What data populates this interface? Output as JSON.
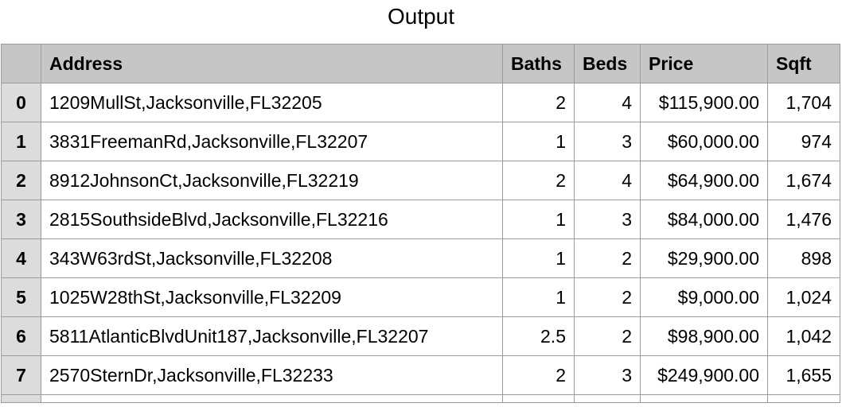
{
  "title": "Output",
  "columns": [
    "Address",
    "Baths",
    "Beds",
    "Price",
    "Sqft"
  ],
  "rows": [
    {
      "index": "0",
      "address": "1209MullSt,Jacksonville,FL32205",
      "baths": "2",
      "beds": "4",
      "price": "$115,900.00",
      "sqft": "1,704"
    },
    {
      "index": "1",
      "address": "3831FreemanRd,Jacksonville,FL32207",
      "baths": "1",
      "beds": "3",
      "price": "$60,000.00",
      "sqft": "974"
    },
    {
      "index": "2",
      "address": "8912JohnsonCt,Jacksonville,FL32219",
      "baths": "2",
      "beds": "4",
      "price": "$64,900.00",
      "sqft": "1,674"
    },
    {
      "index": "3",
      "address": "2815SouthsideBlvd,Jacksonville,FL32216",
      "baths": "1",
      "beds": "3",
      "price": "$84,000.00",
      "sqft": "1,476"
    },
    {
      "index": "4",
      "address": "343W63rdSt,Jacksonville,FL32208",
      "baths": "1",
      "beds": "2",
      "price": "$29,900.00",
      "sqft": "898"
    },
    {
      "index": "5",
      "address": "1025W28thSt,Jacksonville,FL32209",
      "baths": "1",
      "beds": "2",
      "price": "$9,000.00",
      "sqft": "1,024"
    },
    {
      "index": "6",
      "address": "5811AtlanticBlvdUnit187,Jacksonville,FL32207",
      "baths": "2.5",
      "beds": "2",
      "price": "$98,900.00",
      "sqft": "1,042"
    },
    {
      "index": "7",
      "address": "2570SternDr,Jacksonville,FL32233",
      "baths": "2",
      "beds": "3",
      "price": "$249,900.00",
      "sqft": "1,655"
    }
  ]
}
